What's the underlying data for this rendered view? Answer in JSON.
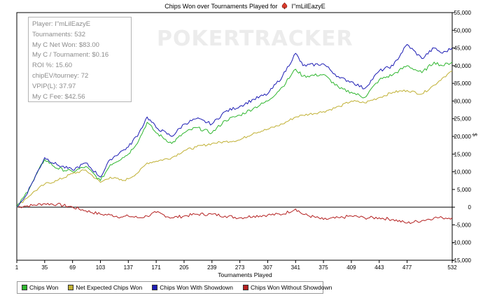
{
  "header": {
    "title": "Chips Won over Tournaments Played for",
    "player_name": "I\"mLilEazyE",
    "player_icon": "poker-chip-icon"
  },
  "watermark": "POKERTRACKER",
  "stats": [
    "Player: I\"mLilEazyE",
    "Tournaments: 532",
    "My C Net Won: $83.00",
    "My C / Tournament: $0.16",
    "ROI %: 15.60",
    "chipEV/tourney: 72",
    "VPIP(L): 37.97",
    "My C Fee: $42.56"
  ],
  "legend": [
    {
      "label": "Chips Won",
      "color": "#2fb62f"
    },
    {
      "label": "Net Expected Chips Won",
      "color": "#c0b033"
    },
    {
      "label": "Chips Won With Showdown",
      "color": "#1c1cb4"
    },
    {
      "label": "Chips Won Without Showdown",
      "color": "#b42020"
    }
  ],
  "chart_data": {
    "type": "line",
    "title": "Chips Won over Tournaments Played for I\"mLilEazyE",
    "xlabel": "Tournaments Played",
    "ylabel": "$",
    "xlim": [
      1,
      532
    ],
    "ylim": [
      -15000,
      55000
    ],
    "x_ticks": [
      1,
      35,
      69,
      103,
      137,
      171,
      205,
      239,
      273,
      307,
      341,
      375,
      409,
      443,
      477,
      532
    ],
    "y_ticks": [
      -15000,
      -10000,
      -5000,
      0,
      5000,
      10000,
      15000,
      20000,
      25000,
      30000,
      35000,
      40000,
      45000,
      50000,
      55000
    ],
    "y_tick_labels": [
      "-15,000",
      "-10,000",
      "-5,000",
      "0",
      "5,000",
      "10,000",
      "15,000",
      "20,000",
      "25,000",
      "30,000",
      "35,000",
      "40,000",
      "45,000",
      "50,000",
      "55,000"
    ],
    "grid": false,
    "legend_position": "bottom",
    "series": [
      {
        "name": "Chips Won",
        "color": "#2fb62f",
        "x": [
          1,
          10,
          20,
          35,
          50,
          69,
          85,
          103,
          115,
          130,
          137,
          150,
          160,
          171,
          190,
          205,
          220,
          239,
          255,
          273,
          290,
          307,
          325,
          341,
          350,
          375,
          395,
          409,
          425,
          443,
          460,
          477,
          495,
          510,
          520,
          532
        ],
        "y": [
          0,
          3000,
          7000,
          13500,
          11000,
          10000,
          11500,
          7500,
          12000,
          14000,
          15000,
          19000,
          24000,
          21000,
          18000,
          21000,
          22500,
          21000,
          24500,
          26000,
          28000,
          30000,
          34000,
          39000,
          37000,
          37500,
          33500,
          32500,
          31000,
          36000,
          37500,
          40000,
          38000,
          41000,
          40000,
          41000
        ]
      },
      {
        "name": "Net Expected Chips Won",
        "color": "#c0b033",
        "x": [
          1,
          10,
          20,
          35,
          50,
          69,
          85,
          103,
          115,
          130,
          137,
          150,
          160,
          171,
          190,
          205,
          220,
          239,
          255,
          273,
          290,
          307,
          325,
          341,
          350,
          375,
          395,
          409,
          425,
          443,
          460,
          477,
          495,
          510,
          520,
          532
        ],
        "y": [
          0,
          2000,
          4000,
          6500,
          7500,
          9500,
          10500,
          7000,
          8500,
          7500,
          8000,
          10000,
          12500,
          13000,
          14000,
          16000,
          17000,
          18000,
          18500,
          19000,
          21000,
          22000,
          23500,
          25500,
          26000,
          27000,
          28500,
          30000,
          29500,
          31000,
          32500,
          33000,
          32000,
          34500,
          36500,
          38500
        ]
      },
      {
        "name": "Chips Won With Showdown",
        "color": "#1c1cb4",
        "x": [
          1,
          10,
          20,
          35,
          50,
          69,
          85,
          103,
          115,
          130,
          137,
          150,
          160,
          171,
          190,
          205,
          220,
          239,
          255,
          273,
          290,
          307,
          325,
          341,
          350,
          375,
          395,
          409,
          425,
          443,
          460,
          477,
          495,
          510,
          520,
          532
        ],
        "y": [
          0,
          2500,
          7000,
          14000,
          12000,
          10500,
          12500,
          8500,
          13500,
          16000,
          17000,
          21000,
          25500,
          22500,
          20000,
          23500,
          25000,
          23500,
          27000,
          28500,
          30500,
          32000,
          37000,
          43500,
          40000,
          40500,
          36500,
          35500,
          33500,
          38500,
          40000,
          46000,
          42000,
          45000,
          43500,
          45000
        ]
      },
      {
        "name": "Chips Won Without Showdown",
        "color": "#b42020",
        "x": [
          1,
          10,
          20,
          35,
          50,
          69,
          85,
          103,
          115,
          130,
          137,
          150,
          160,
          171,
          190,
          205,
          220,
          239,
          255,
          273,
          290,
          307,
          325,
          341,
          350,
          375,
          395,
          409,
          425,
          443,
          460,
          477,
          495,
          510,
          520,
          532
        ],
        "y": [
          0,
          300,
          500,
          1000,
          800,
          0,
          -1000,
          -2000,
          -2200,
          -2800,
          -2500,
          -3000,
          -2500,
          -1500,
          -3000,
          -2500,
          -2000,
          -2000,
          -2500,
          -3000,
          -2500,
          -2200,
          -2000,
          -500,
          -2000,
          -3500,
          -3000,
          -2500,
          -3000,
          -3000,
          -3500,
          -4500,
          -3800,
          -3000,
          -3000,
          -3000
        ]
      }
    ]
  }
}
